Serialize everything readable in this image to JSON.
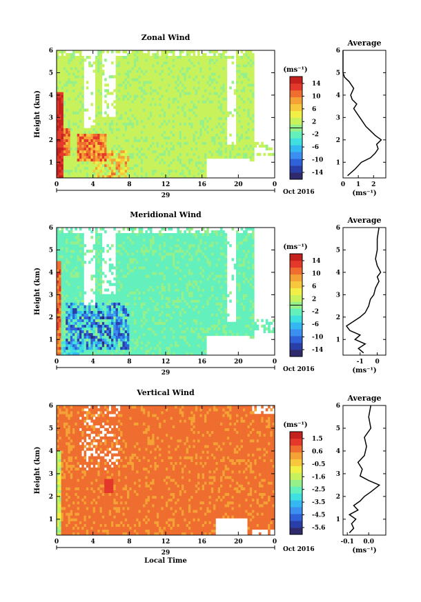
{
  "chart_data": [
    {
      "type": "heatmap",
      "title": "Zonal Wind",
      "ylabel": "Height (km)",
      "ylim": [
        0.3,
        6.0
      ],
      "yticks": [
        1,
        2,
        3,
        4,
        5,
        6
      ],
      "xticks": [
        "0",
        "4",
        "8",
        "12",
        "16",
        "20",
        "0"
      ],
      "xlim": [
        0,
        24
      ],
      "date_label": "29",
      "month_label": "Oct 2016",
      "colorbar": {
        "unit_label": "(ms⁻¹)",
        "ticks": [
          "14",
          "10",
          "6",
          "2",
          "-2",
          "-6",
          "-10",
          "-14"
        ],
        "range": [
          -16,
          16
        ]
      },
      "average": {
        "title": "Average",
        "xlabel": "(ms⁻¹)",
        "xticks": [
          "0",
          "1",
          "2"
        ],
        "xlim": [
          0,
          2.8
        ],
        "yticks": [
          1,
          2,
          3,
          4,
          5,
          6
        ],
        "profile": [
          [
            0.4,
            0.3
          ],
          [
            0.7,
            0.8
          ],
          [
            1.0,
            1.2
          ],
          [
            1.2,
            1.8
          ],
          [
            1.4,
            2.1
          ],
          [
            1.6,
            2.3
          ],
          [
            1.8,
            2.2
          ],
          [
            2.0,
            2.5
          ],
          [
            2.2,
            2.1
          ],
          [
            2.4,
            1.8
          ],
          [
            2.6,
            1.5
          ],
          [
            2.8,
            1.3
          ],
          [
            3.0,
            1.1
          ],
          [
            3.2,
            0.9
          ],
          [
            3.4,
            0.7
          ],
          [
            3.6,
            0.9
          ],
          [
            3.8,
            0.6
          ],
          [
            4.0,
            0.5
          ],
          [
            4.3,
            0.7
          ],
          [
            4.6,
            0.4
          ],
          [
            4.8,
            0.1
          ],
          [
            5.0,
            0.0
          ],
          [
            5.5,
            0.0
          ],
          [
            6.0,
            0.0
          ]
        ]
      }
    },
    {
      "type": "heatmap",
      "title": "Meridional Wind",
      "ylabel": "Height (km)",
      "ylim": [
        0.3,
        6.0
      ],
      "yticks": [
        1,
        2,
        3,
        4,
        5,
        6
      ],
      "xticks": [
        "0",
        "4",
        "8",
        "12",
        "16",
        "20",
        "0"
      ],
      "xlim": [
        0,
        24
      ],
      "date_label": "29",
      "month_label": "Oct 2016",
      "colorbar": {
        "unit_label": "(ms⁻¹)",
        "ticks": [
          "14",
          "10",
          "6",
          "2",
          "-2",
          "-6",
          "-10",
          "-14"
        ],
        "range": [
          -16,
          16
        ]
      },
      "average": {
        "title": "Average",
        "xlabel": "(ms⁻¹)",
        "xticks": [
          "-1",
          "0"
        ],
        "xlim": [
          -2.0,
          0.5
        ],
        "yticks": [
          1,
          2,
          3,
          4,
          5,
          6
        ],
        "profile": [
          [
            0.4,
            -0.8
          ],
          [
            0.6,
            -1.1
          ],
          [
            0.8,
            -0.7
          ],
          [
            1.0,
            -1.3
          ],
          [
            1.2,
            -1.0
          ],
          [
            1.4,
            -1.6
          ],
          [
            1.6,
            -1.8
          ],
          [
            1.8,
            -1.4
          ],
          [
            2.0,
            -1.0
          ],
          [
            2.2,
            -0.7
          ],
          [
            2.5,
            -0.5
          ],
          [
            2.8,
            -0.4
          ],
          [
            3.0,
            -0.2
          ],
          [
            3.3,
            -0.1
          ],
          [
            3.6,
            0.1
          ],
          [
            3.8,
            0.0
          ],
          [
            4.0,
            0.2
          ],
          [
            4.3,
            0.0
          ],
          [
            4.6,
            -0.1
          ],
          [
            5.0,
            0.0
          ],
          [
            5.5,
            0.0
          ],
          [
            6.0,
            0.1
          ]
        ]
      }
    },
    {
      "type": "heatmap",
      "title": "Vertical Wind",
      "ylabel": "Height (km)",
      "xlabel": "Local Time",
      "ylim": [
        0.3,
        6.0
      ],
      "yticks": [
        1,
        2,
        3,
        4,
        5,
        6
      ],
      "xticks": [
        "0",
        "4",
        "8",
        "12",
        "16",
        "20",
        "0"
      ],
      "xlim": [
        0,
        24
      ],
      "date_label": "29",
      "month_label": "Oct 2016",
      "colorbar": {
        "unit_label": "(ms⁻¹)",
        "ticks": [
          "1.5",
          "0.6",
          "-0.5",
          "-1.6",
          "-2.5",
          "-3.5",
          "-4.5",
          "-5.6"
        ],
        "range": [
          -6.0,
          2.0
        ]
      },
      "average": {
        "title": "Average",
        "xlabel": "(ms⁻¹)",
        "xticks": [
          "-0.1",
          "0.0"
        ],
        "xlim": [
          -0.12,
          0.08
        ],
        "yticks": [
          1,
          2,
          3,
          4,
          5,
          6
        ],
        "profile": [
          [
            0.4,
            -0.09
          ],
          [
            0.6,
            -0.07
          ],
          [
            0.8,
            -0.08
          ],
          [
            1.0,
            -0.06
          ],
          [
            1.2,
            -0.09
          ],
          [
            1.4,
            -0.05
          ],
          [
            1.6,
            -0.07
          ],
          [
            1.8,
            -0.04
          ],
          [
            2.0,
            -0.02
          ],
          [
            2.2,
            0.01
          ],
          [
            2.5,
            0.05
          ],
          [
            2.7,
            0.0
          ],
          [
            2.9,
            -0.04
          ],
          [
            3.2,
            -0.03
          ],
          [
            3.5,
            -0.05
          ],
          [
            3.8,
            -0.02
          ],
          [
            4.2,
            -0.01
          ],
          [
            4.6,
            -0.02
          ],
          [
            5.0,
            0.01
          ],
          [
            5.5,
            0.0
          ],
          [
            6.0,
            0.01
          ]
        ]
      }
    }
  ]
}
